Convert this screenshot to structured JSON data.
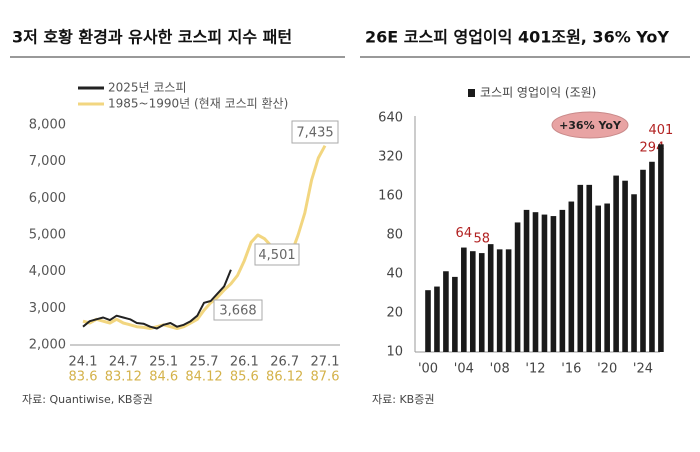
{
  "chart_data": [
    {
      "type": "line",
      "title": "3저 호황 환경과 유사한 코스피 지수 패턴",
      "categories": [
        "24.1",
        null,
        null,
        null,
        null,
        null,
        "24.7",
        null,
        null,
        null,
        null,
        null,
        "25.1",
        null,
        null,
        null,
        null,
        null,
        "25.7",
        null,
        null,
        null,
        null,
        null,
        "26.1",
        null,
        null,
        null,
        null,
        null,
        "26.7",
        null,
        null,
        null,
        null,
        null,
        "27.1"
      ],
      "categories_alt": [
        "83.6",
        null,
        null,
        null,
        null,
        null,
        "83.12",
        null,
        null,
        null,
        null,
        null,
        "84.6",
        null,
        null,
        null,
        null,
        null,
        "84.12",
        null,
        null,
        null,
        null,
        null,
        "85.6",
        null,
        null,
        null,
        null,
        null,
        "86.12",
        null,
        null,
        null,
        null,
        null,
        "87.6"
      ],
      "series": [
        {
          "name": "2025년 코스피",
          "color": "#222222",
          "values": [
            2500,
            2650,
            2700,
            2750,
            2680,
            2800,
            2750,
            2700,
            2600,
            2580,
            2500,
            2450,
            2550,
            2600,
            2500,
            2550,
            2650,
            2800,
            3150,
            3200,
            3400,
            3600,
            4050,
            null,
            null,
            null,
            null,
            null,
            null,
            null,
            null,
            null,
            null,
            null,
            null,
            null,
            null
          ]
        },
        {
          "name": "1985~1990년 (현재 코스피 환산)",
          "color": "#f2d680",
          "values": [
            2650,
            2600,
            2700,
            2650,
            2600,
            2700,
            2600,
            2550,
            2500,
            2480,
            2450,
            2500,
            2550,
            2500,
            2450,
            2500,
            2600,
            2700,
            2950,
            3150,
            3300,
            3500,
            3668,
            3900,
            4300,
            4800,
            5000,
            4900,
            4700,
            4501,
            4300,
            4500,
            5000,
            5600,
            6500,
            7100,
            7435
          ]
        }
      ],
      "ylim": [
        2000,
        8000
      ],
      "yticks": [
        {
          "value": 2000,
          "label": "2,000"
        },
        {
          "value": 3000,
          "label": "3,000"
        },
        {
          "value": 4000,
          "label": "4,000"
        },
        {
          "value": 5000,
          "label": "5,000"
        },
        {
          "value": 6000,
          "label": "6,000"
        },
        {
          "value": 7000,
          "label": "7,000"
        },
        {
          "value": 8000,
          "label": "8,000"
        }
      ],
      "annotations": [
        "3,668",
        "4,501",
        "7,435"
      ],
      "source": "자료: Quantiwise, KB증권"
    },
    {
      "type": "bar",
      "title": "26E 코스피 영업이익 401조원, 36% YoY",
      "categories": [
        "'00",
        null,
        null,
        null,
        "'04",
        null,
        null,
        null,
        "'08",
        null,
        null,
        null,
        "'12",
        null,
        null,
        null,
        "'16",
        null,
        null,
        null,
        "'20",
        null,
        null,
        null,
        "'24",
        null,
        null
      ],
      "series": [
        {
          "name": "코스피 영업이익 (조원)",
          "color": "#1a1a1a",
          "values": [
            30,
            32,
            42,
            38,
            64,
            60,
            58,
            68,
            62,
            62,
            100,
            125,
            120,
            115,
            112,
            125,
            145,
            195,
            195,
            135,
            140,
            230,
            210,
            165,
            255,
            294,
            401
          ],
          "value_labels": [
            null,
            null,
            null,
            null,
            "64",
            null,
            "58",
            null,
            null,
            null,
            null,
            null,
            null,
            null,
            null,
            null,
            null,
            null,
            null,
            null,
            null,
            null,
            null,
            null,
            null,
            "294",
            "401"
          ]
        }
      ],
      "log_scale": true,
      "ylim": [
        10,
        640
      ],
      "yticks": [
        10,
        20,
        40,
        80,
        160,
        320,
        640
      ],
      "annotations": [
        "+36% YoY"
      ],
      "source": "자료: KB증권"
    }
  ]
}
